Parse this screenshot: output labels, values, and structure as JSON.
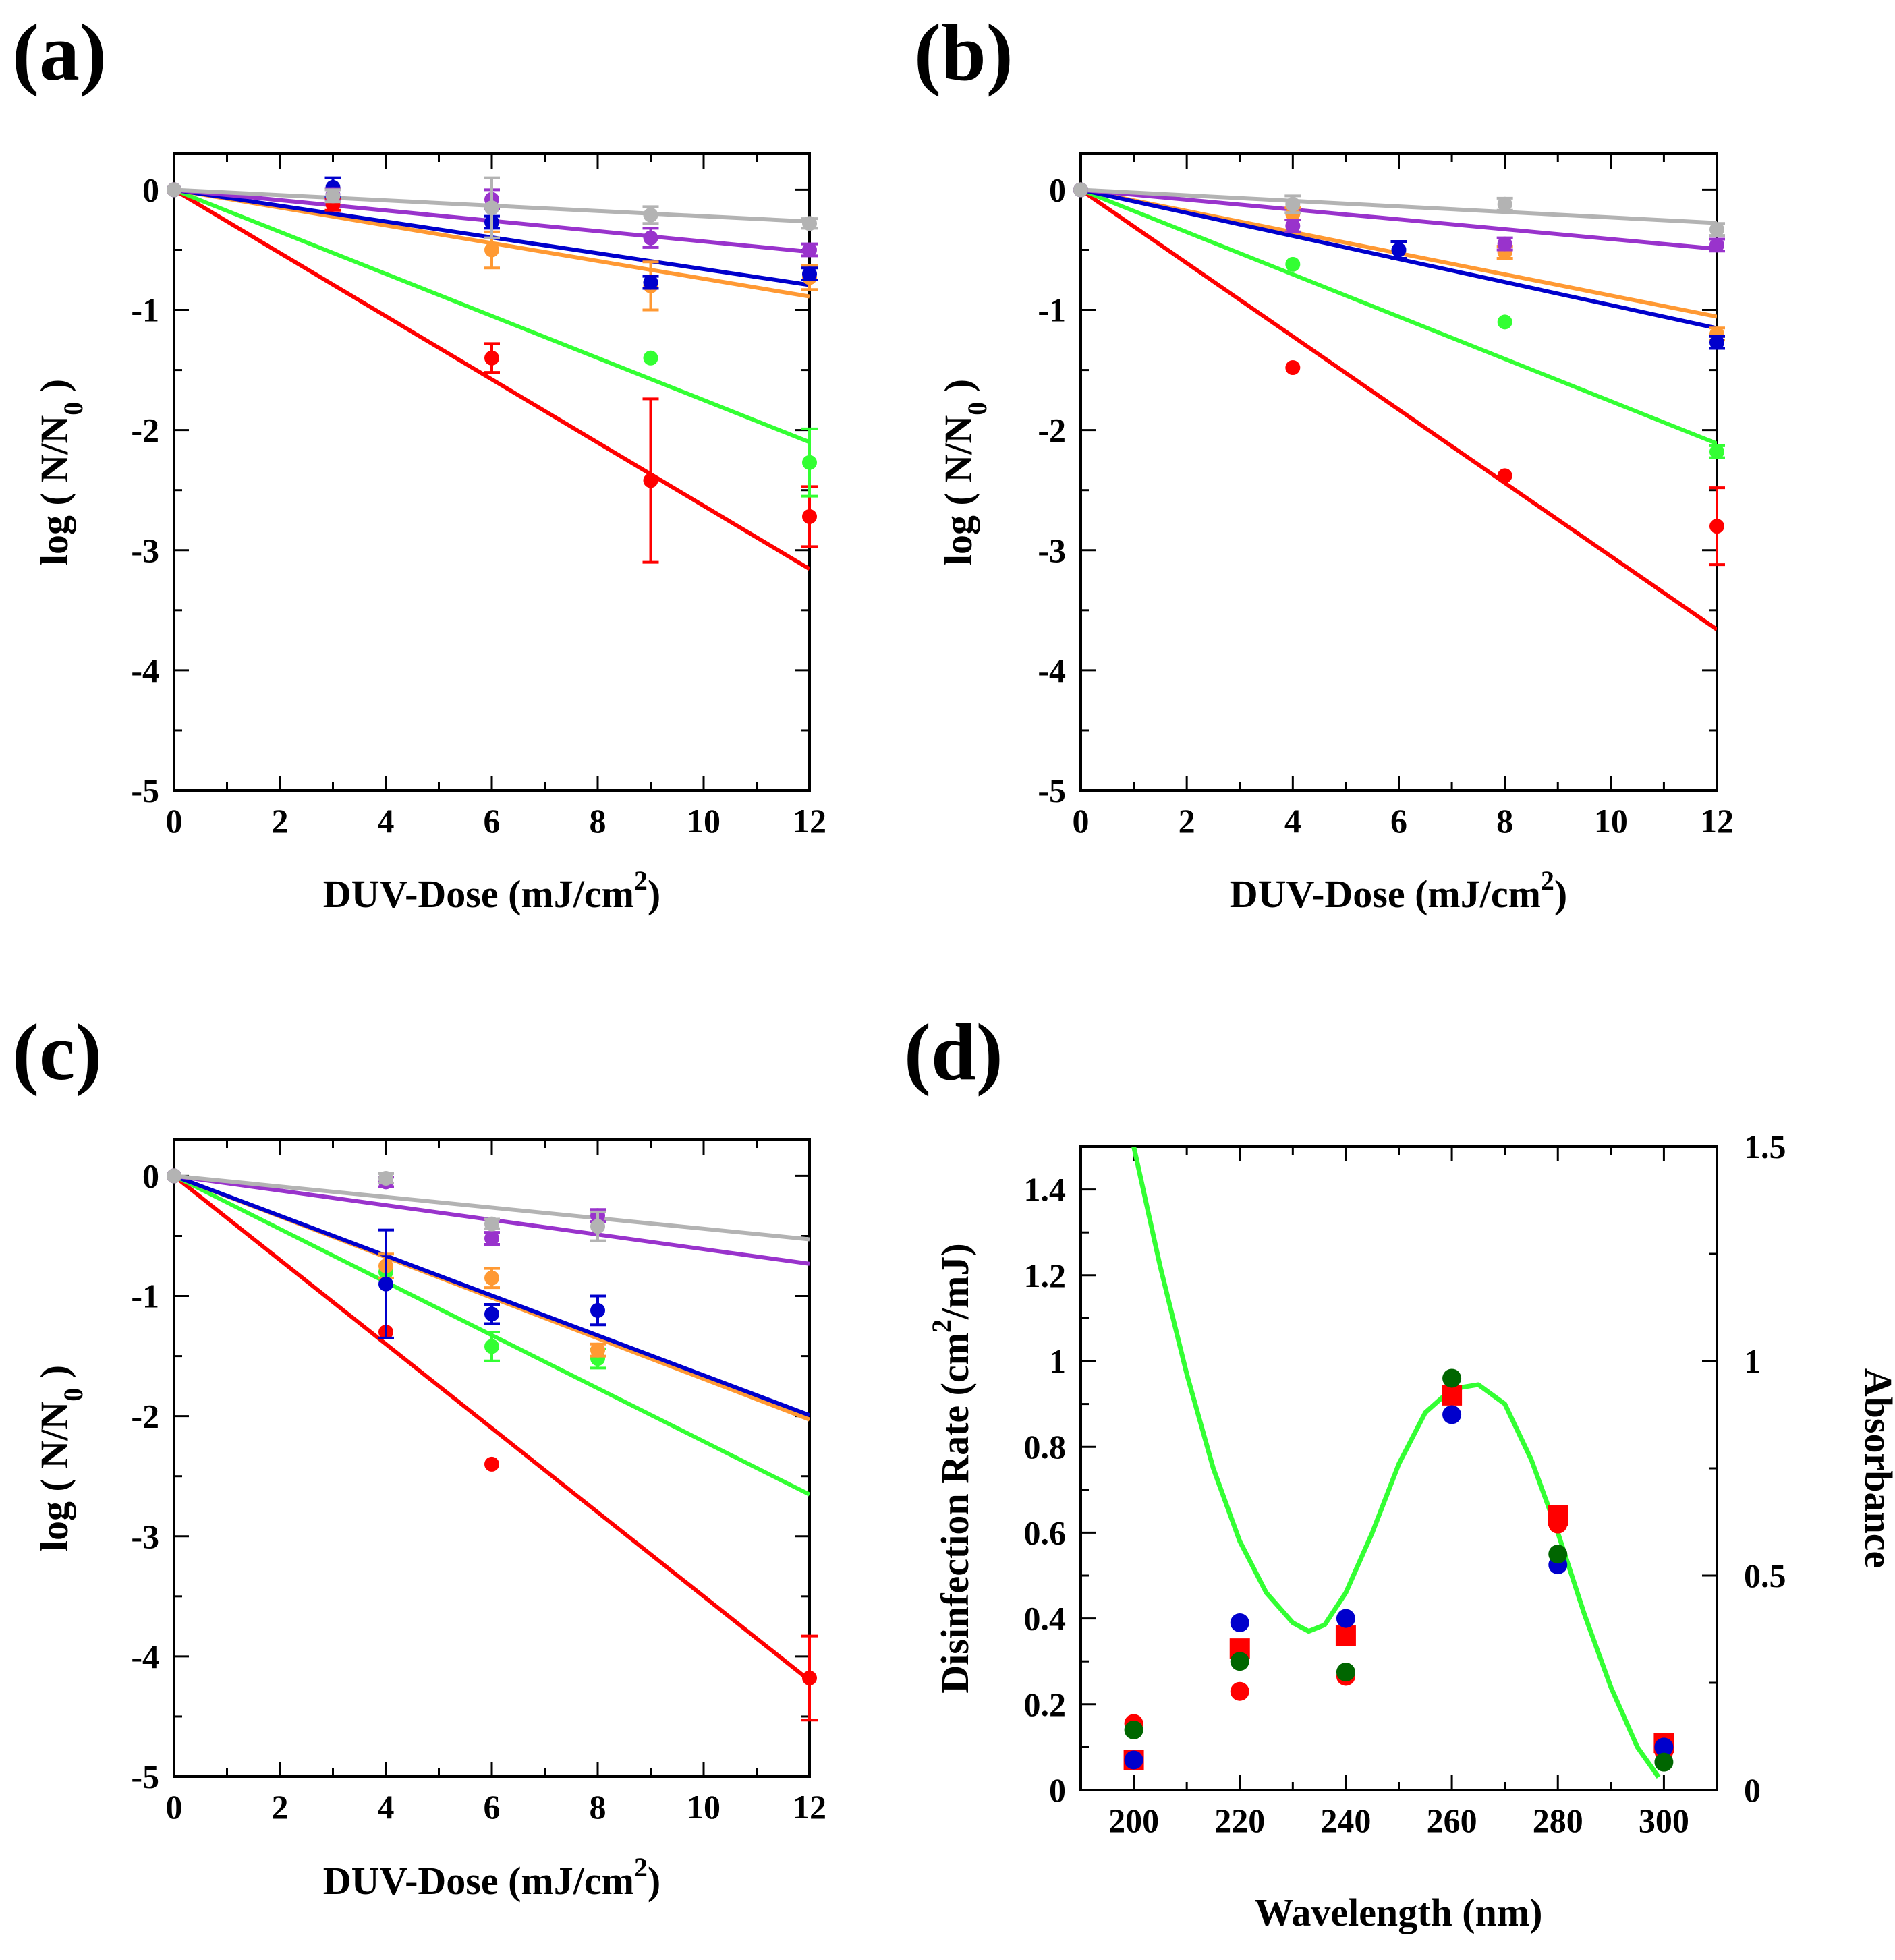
{
  "figure": {
    "colors": {
      "red": "#ff0000",
      "green": "#33ff33",
      "orange": "#ff9933",
      "blue": "#0000cc",
      "purple": "#9933cc",
      "gray": "#b3b3b3",
      "darkgreen": "#006600"
    }
  },
  "chart_data": [
    {
      "id": "a",
      "type": "scatter",
      "panel_label": "(a)",
      "xlabel": "DUV-Dose (mJ/cm",
      "xlabel_sup": "2",
      "xlabel_end": ")",
      "ylabel": "log ( N/N",
      "ylabel_sub": "0",
      "ylabel_end": " )",
      "xlim": [
        0,
        12
      ],
      "ylim": [
        -5,
        0.3
      ],
      "xticks": [
        0,
        2,
        4,
        6,
        8,
        10,
        12
      ],
      "yticks": [
        0,
        -1,
        -2,
        -3,
        -4,
        -5
      ],
      "grid": false,
      "series": [
        {
          "name": "red",
          "color": "red",
          "x": [
            0,
            3,
            6,
            9,
            12
          ],
          "y": [
            0,
            -0.12,
            -1.4,
            -2.42,
            -2.72
          ],
          "err": [
            0,
            0.05,
            0.12,
            0.68,
            0.25
          ],
          "fit_slope": -0.263
        },
        {
          "name": "green",
          "color": "green",
          "x": [
            0,
            9,
            12
          ],
          "y": [
            0,
            -1.4,
            -2.27
          ],
          "err": [
            0,
            0,
            0.28
          ],
          "fit_slope": -0.175
        },
        {
          "name": "orange",
          "color": "orange",
          "x": [
            0,
            6,
            9,
            12
          ],
          "y": [
            0,
            -0.5,
            -0.8,
            -0.73
          ],
          "err": [
            0,
            0.15,
            0.2,
            0.1
          ],
          "fit_slope": -0.074
        },
        {
          "name": "blue",
          "color": "blue",
          "x": [
            0,
            3,
            6,
            9,
            12
          ],
          "y": [
            0,
            0.02,
            -0.27,
            -0.77,
            -0.7
          ],
          "err": [
            0,
            0.08,
            0.05,
            0.05,
            0.05
          ],
          "fit_slope": -0.066
        },
        {
          "name": "purple",
          "color": "purple",
          "x": [
            0,
            3,
            6,
            9,
            12
          ],
          "y": [
            0,
            -0.04,
            -0.08,
            -0.4,
            -0.5
          ],
          "err": [
            0,
            0.05,
            0.08,
            0.08,
            0.05
          ],
          "fit_slope": -0.043
        },
        {
          "name": "gray",
          "color": "gray",
          "x": [
            0,
            3,
            6,
            9,
            12
          ],
          "y": [
            0,
            -0.05,
            -0.15,
            -0.21,
            -0.28
          ],
          "err": [
            0,
            0.05,
            0.25,
            0.07,
            0.04
          ],
          "fit_slope": -0.022
        }
      ]
    },
    {
      "id": "b",
      "type": "scatter",
      "panel_label": "(b)",
      "xlabel": "DUV-Dose (mJ/cm",
      "xlabel_sup": "2",
      "xlabel_end": ")",
      "ylabel": "log ( N/N",
      "ylabel_sub": "0",
      "ylabel_end": " )",
      "xlim": [
        0,
        12
      ],
      "ylim": [
        -5,
        0.3
      ],
      "xticks": [
        0,
        2,
        4,
        6,
        8,
        10,
        12
      ],
      "yticks": [
        0,
        -1,
        -2,
        -3,
        -4,
        -5
      ],
      "grid": false,
      "series": [
        {
          "name": "red",
          "color": "red",
          "x": [
            0,
            4,
            8,
            12
          ],
          "y": [
            0,
            -1.48,
            -2.38,
            -2.8
          ],
          "err": [
            0,
            0,
            0,
            0.32
          ],
          "fit_slope": -0.305
        },
        {
          "name": "green",
          "color": "green",
          "x": [
            0,
            4,
            8,
            12
          ],
          "y": [
            0,
            -0.62,
            -1.1,
            -2.18
          ],
          "err": [
            0,
            0,
            0,
            0.05
          ],
          "fit_slope": -0.176
        },
        {
          "name": "orange",
          "color": "orange",
          "x": [
            0,
            4,
            8,
            12
          ],
          "y": [
            0,
            -0.2,
            -0.52,
            -1.2
          ],
          "err": [
            0,
            0.05,
            0.05,
            0.05
          ],
          "fit_slope": -0.088
        },
        {
          "name": "blue",
          "color": "blue",
          "x": [
            0,
            6,
            12
          ],
          "y": [
            0,
            -0.5,
            -1.27
          ],
          "err": [
            0,
            0.07,
            0.05
          ],
          "fit_slope": -0.096
        },
        {
          "name": "purple",
          "color": "purple",
          "x": [
            0,
            4,
            8,
            12
          ],
          "y": [
            0,
            -0.3,
            -0.45,
            -0.46
          ],
          "err": [
            0,
            0.05,
            0.05,
            0.05
          ],
          "fit_slope": -0.041
        },
        {
          "name": "gray",
          "color": "gray",
          "x": [
            0,
            4,
            8,
            12
          ],
          "y": [
            0,
            -0.12,
            -0.12,
            -0.33
          ],
          "err": [
            0,
            0.07,
            0.05,
            0.05
          ],
          "fit_slope": -0.023
        }
      ]
    },
    {
      "id": "c",
      "type": "scatter",
      "panel_label": "(c)",
      "xlabel": "DUV-Dose (mJ/cm",
      "xlabel_sup": "2",
      "xlabel_end": ")",
      "ylabel": "log ( N/N",
      "ylabel_sub": "0",
      "ylabel_end": " )",
      "xlim": [
        0,
        12
      ],
      "ylim": [
        -5,
        0.3
      ],
      "xticks": [
        0,
        2,
        4,
        6,
        8,
        10,
        12
      ],
      "yticks": [
        0,
        -1,
        -2,
        -3,
        -4,
        -5
      ],
      "grid": false,
      "series": [
        {
          "name": "red",
          "color": "red",
          "x": [
            0,
            4,
            6,
            12
          ],
          "y": [
            0,
            -1.3,
            -2.4,
            -4.18
          ],
          "err": [
            0,
            0,
            0,
            0.35
          ],
          "fit_slope": -0.35
        },
        {
          "name": "green",
          "color": "green",
          "x": [
            0,
            4,
            6,
            8
          ],
          "y": [
            0,
            -0.8,
            -1.42,
            -1.52
          ],
          "err": [
            0,
            0,
            0.12,
            0.08
          ],
          "fit_slope": -0.221
        },
        {
          "name": "orange",
          "color": "orange",
          "x": [
            0,
            4,
            6,
            8
          ],
          "y": [
            0,
            -0.75,
            -0.85,
            -1.45
          ],
          "err": [
            0,
            0.1,
            0.08,
            0.05
          ],
          "fit_slope": -0.169
        },
        {
          "name": "blue",
          "color": "blue",
          "x": [
            0,
            4,
            6,
            8
          ],
          "y": [
            0,
            -0.9,
            -1.15,
            -1.12
          ],
          "err": [
            0,
            0.45,
            0.08,
            0.12
          ],
          "fit_slope": -0.166
        },
        {
          "name": "purple",
          "color": "purple",
          "x": [
            0,
            4,
            6,
            8
          ],
          "y": [
            0,
            -0.05,
            -0.52,
            -0.33
          ],
          "err": [
            0,
            0.04,
            0.05,
            0.05
          ],
          "fit_slope": -0.061
        },
        {
          "name": "gray",
          "color": "gray",
          "x": [
            0,
            4,
            6,
            8
          ],
          "y": [
            0,
            -0.02,
            -0.4,
            -0.42
          ],
          "err": [
            0,
            0.04,
            0.04,
            0.12
          ],
          "fit_slope": -0.044
        }
      ]
    },
    {
      "id": "d",
      "type": "scatter",
      "panel_label": "(d)",
      "xlabel": "Wavelength (nm)",
      "ylabel": "Disinfection Rate (cm",
      "ylabel_sup": "2",
      "ylabel_end": "/mJ)",
      "y2label": "Absorbance",
      "xlim": [
        190,
        310
      ],
      "ylim": [
        0,
        1.5
      ],
      "y2lim": [
        0,
        1.5
      ],
      "xticks": [
        200,
        220,
        240,
        260,
        280,
        300
      ],
      "yticks": [
        0,
        0.2,
        0.4,
        0.6,
        0.8,
        1,
        1.2,
        1.4
      ],
      "ytick_labels": [
        "0",
        "0.2",
        "0.4",
        "0.6",
        "0.8",
        "1",
        "1.2",
        "1.4"
      ],
      "y2ticks": [
        0,
        0.5,
        1,
        1.5
      ],
      "y2tick_labels": [
        "0",
        "0.5",
        "1",
        "1.5"
      ],
      "grid": false,
      "series": [
        {
          "name": "red-square",
          "color": "red",
          "marker": "square",
          "x": [
            200,
            220,
            240,
            260,
            280,
            300
          ],
          "y": [
            0.07,
            0.33,
            0.36,
            0.92,
            0.64,
            0.11
          ]
        },
        {
          "name": "red-circle",
          "color": "red",
          "marker": "circle",
          "x": [
            200,
            220,
            240,
            260,
            280,
            300
          ],
          "y": [
            0.155,
            0.23,
            0.265,
            0.93,
            0.62,
            0.09
          ]
        },
        {
          "name": "blue-circle",
          "color": "blue",
          "marker": "circle",
          "x": [
            200,
            220,
            240,
            260,
            280,
            300
          ],
          "y": [
            0.07,
            0.39,
            0.4,
            0.875,
            0.525,
            0.1
          ]
        },
        {
          "name": "darkgreen-circle",
          "color": "darkgreen",
          "marker": "circle",
          "x": [
            200,
            220,
            240,
            260,
            280,
            300
          ],
          "y": [
            0.14,
            0.3,
            0.275,
            0.96,
            0.55,
            0.065
          ]
        }
      ],
      "absorbance_curve": {
        "name": "absorbance",
        "color": "green",
        "x": [
          200,
          205,
          210,
          215,
          220,
          225,
          230,
          233,
          236,
          240,
          245,
          250,
          255,
          260,
          265,
          270,
          275,
          280,
          285,
          290,
          295,
          299
        ],
        "y": [
          1.5,
          1.22,
          0.97,
          0.75,
          0.58,
          0.46,
          0.39,
          0.37,
          0.385,
          0.46,
          0.6,
          0.76,
          0.88,
          0.935,
          0.945,
          0.9,
          0.77,
          0.6,
          0.41,
          0.24,
          0.1,
          0.03
        ]
      }
    }
  ]
}
